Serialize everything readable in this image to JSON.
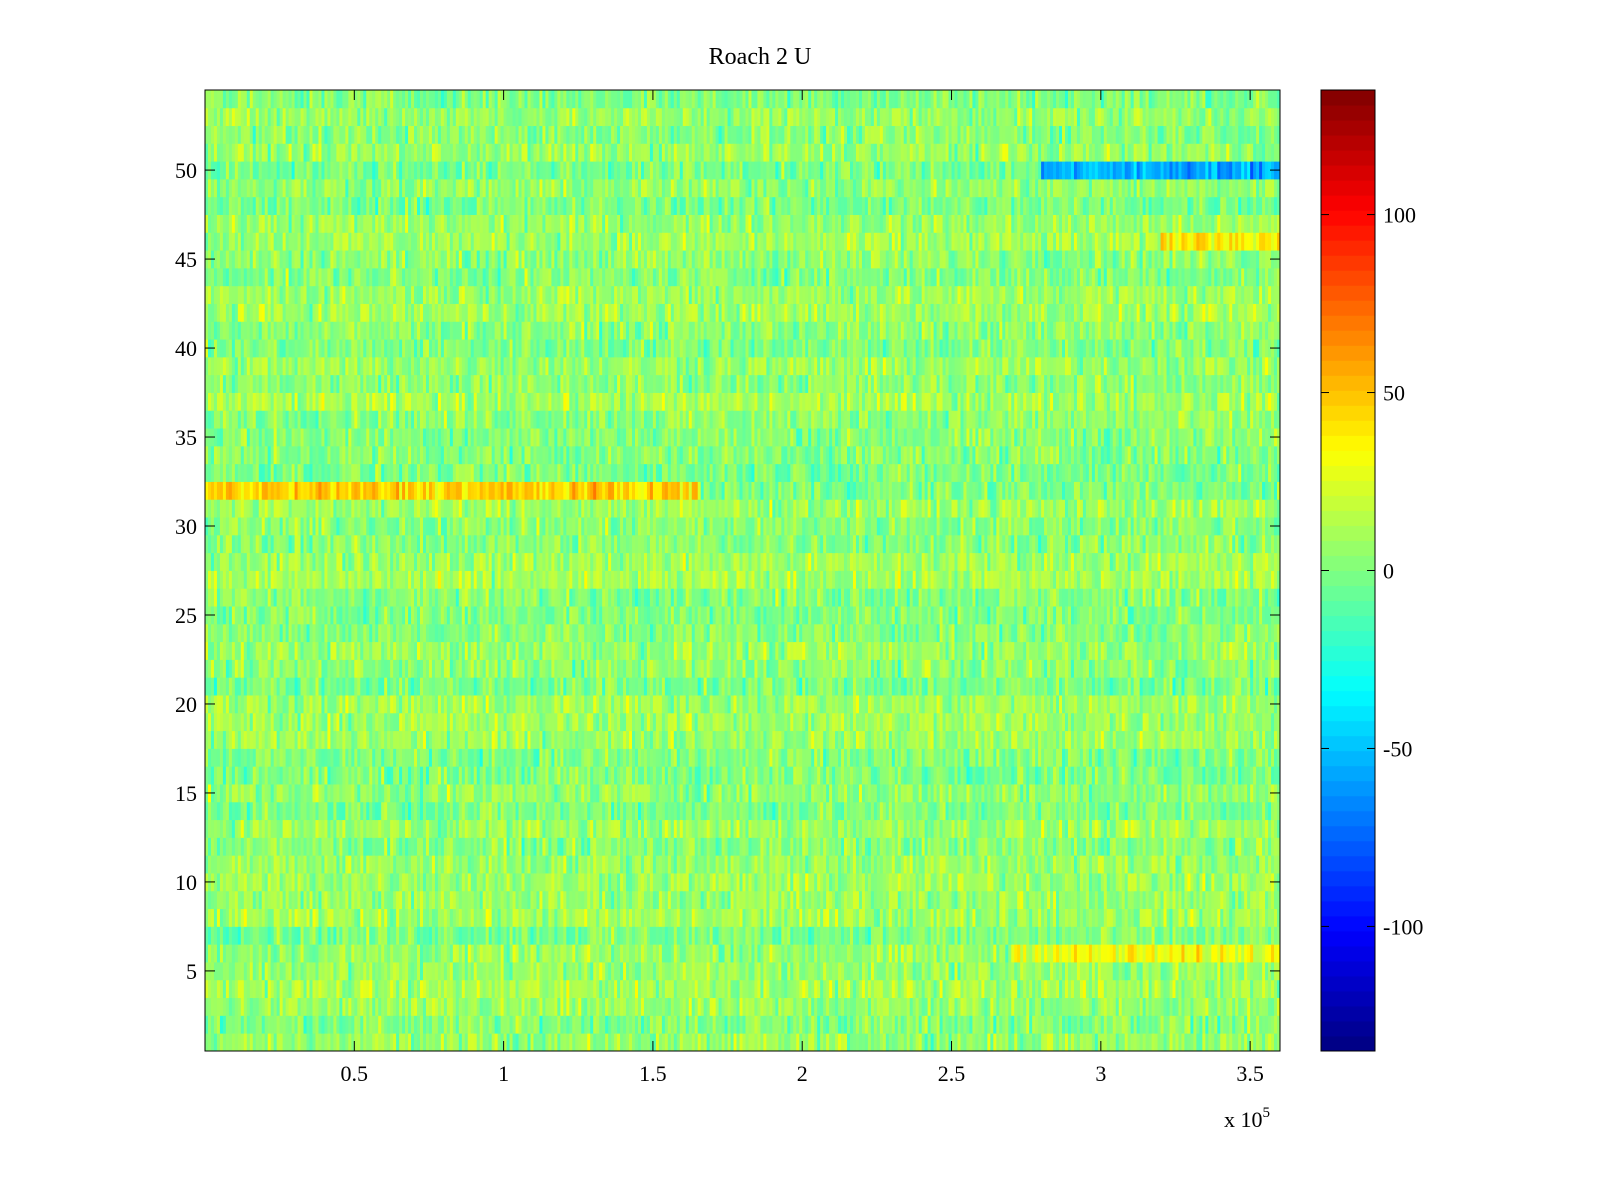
{
  "chart_data": {
    "type": "heatmap",
    "title": "Roach 2 U",
    "xlabel": "",
    "ylabel": "",
    "x_range": [
      0,
      360000
    ],
    "y_range": [
      1,
      54
    ],
    "x_exponent_label": "x 10",
    "x_exponent_power": "5",
    "x_ticks": [
      {
        "value": 50000,
        "label": "0.5"
      },
      {
        "value": 100000,
        "label": "1"
      },
      {
        "value": 150000,
        "label": "1.5"
      },
      {
        "value": 200000,
        "label": "2"
      },
      {
        "value": 250000,
        "label": "2.5"
      },
      {
        "value": 300000,
        "label": "3"
      },
      {
        "value": 350000,
        "label": "3.5"
      }
    ],
    "y_ticks": [
      {
        "value": 5,
        "label": "5"
      },
      {
        "value": 10,
        "label": "10"
      },
      {
        "value": 15,
        "label": "15"
      },
      {
        "value": 20,
        "label": "20"
      },
      {
        "value": 25,
        "label": "25"
      },
      {
        "value": 30,
        "label": "30"
      },
      {
        "value": 35,
        "label": "35"
      },
      {
        "value": 40,
        "label": "40"
      },
      {
        "value": 45,
        "label": "45"
      },
      {
        "value": 50,
        "label": "50"
      }
    ],
    "colorbar": {
      "colormap": "jet",
      "range": [
        -135,
        135
      ],
      "ticks": [
        {
          "value": 100,
          "label": "100"
        },
        {
          "value": 50,
          "label": "50"
        },
        {
          "value": 0,
          "label": "0"
        },
        {
          "value": -50,
          "label": "-50"
        },
        {
          "value": -100,
          "label": "-100"
        }
      ]
    },
    "notable_features": [
      {
        "row": 32,
        "x_range": [
          0,
          165000
        ],
        "approx_value": 45
      },
      {
        "row": 50,
        "x_range": [
          280000,
          360000
        ],
        "approx_value": -55
      },
      {
        "row": 46,
        "x_range": [
          320000,
          360000
        ],
        "approx_value": 40
      },
      {
        "row": 6,
        "x_range": [
          270000,
          360000
        ],
        "approx_value": 30
      }
    ],
    "grid": false
  }
}
